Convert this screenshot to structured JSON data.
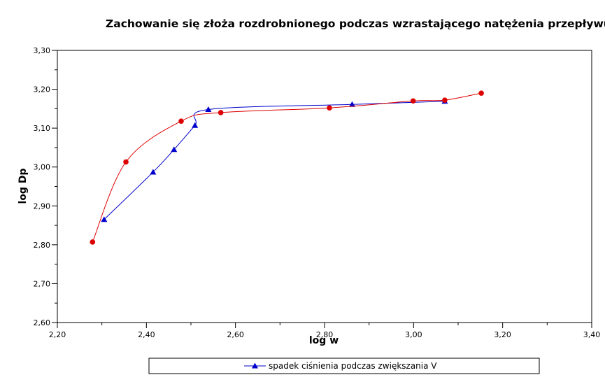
{
  "chart_data": {
    "type": "scatter",
    "title": "Zachowanie się złoża rozdrobnionego podczas wzrastającego natężenia przepływu",
    "xlabel": "log w",
    "ylabel": "log Dp",
    "xlim": [
      2.2,
      3.4
    ],
    "ylim": [
      2.6,
      3.3
    ],
    "x_ticks": [
      "2,20",
      "2,40",
      "2,60",
      "2,80",
      "3,00",
      "3,20",
      "3,40"
    ],
    "y_ticks": [
      "2,60",
      "2,70",
      "2,80",
      "2,90",
      "3,00",
      "3,10",
      "3,20",
      "3,30"
    ],
    "grid": false,
    "legend_position": "bottom",
    "series": [
      {
        "name": "spadek ciśnienia podczas zwiększania V",
        "color": "#0000cc",
        "marker": "triangle",
        "x": [
          2.305,
          2.415,
          2.462,
          2.509,
          2.539,
          2.862,
          3.07
        ],
        "y": [
          2.865,
          2.987,
          3.045,
          3.107,
          3.148,
          3.161,
          3.169
        ]
      },
      {
        "name": "",
        "color": "#dd0000",
        "marker": "circle",
        "x": [
          2.279,
          2.354,
          2.478,
          2.567,
          2.811,
          2.999,
          3.07,
          3.152
        ],
        "y": [
          2.807,
          3.013,
          3.118,
          3.14,
          3.152,
          3.17,
          3.172,
          3.19
        ]
      }
    ]
  }
}
